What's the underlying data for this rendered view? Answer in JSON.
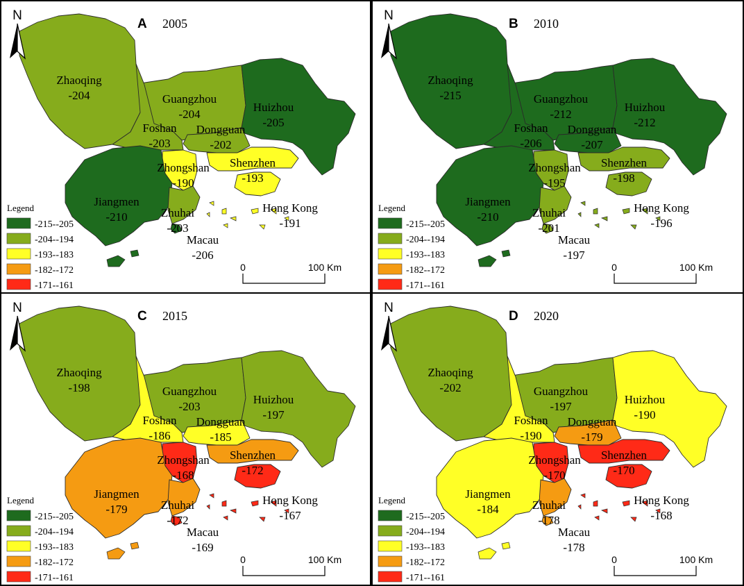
{
  "legend": {
    "title": "Legend",
    "classes": [
      {
        "label": "-215--205",
        "color": "#1e6b1e"
      },
      {
        "label": "-204--194",
        "color": "#86ac1c"
      },
      {
        "label": "-193--183",
        "color": "#ffff26"
      },
      {
        "label": "-182--172",
        "color": "#f59b12"
      },
      {
        "label": "-171--161",
        "color": "#ff2a17"
      }
    ]
  },
  "scale_bar": {
    "zero": "0",
    "end": "100 Km"
  },
  "north_label": "N",
  "panels": [
    {
      "letter": "A",
      "year": "2005",
      "cities": [
        {
          "name": "Zhaoqing",
          "value": "-204",
          "class": 1
        },
        {
          "name": "Guangzhou",
          "value": "-204",
          "class": 1
        },
        {
          "name": "Huizhou",
          "value": "-205",
          "class": 0
        },
        {
          "name": "Foshan",
          "value": "-203",
          "class": 1
        },
        {
          "name": "Dongguan",
          "value": "-202",
          "class": 1
        },
        {
          "name": "Zhongshan",
          "value": "-190",
          "class": 2
        },
        {
          "name": "Shenzhen",
          "value": "-193",
          "class": 2
        },
        {
          "name": "Jiangmen",
          "value": "-210",
          "class": 0
        },
        {
          "name": "Zhuhai",
          "value": "-203",
          "class": 1
        },
        {
          "name": "Hong Kong",
          "value": "-191",
          "class": 2
        },
        {
          "name": "Macau",
          "value": "-206",
          "class": 0
        }
      ]
    },
    {
      "letter": "B",
      "year": "2010",
      "cities": [
        {
          "name": "Zhaoqing",
          "value": "-215",
          "class": 0
        },
        {
          "name": "Guangzhou",
          "value": "-212",
          "class": 0
        },
        {
          "name": "Huizhou",
          "value": "-212",
          "class": 0
        },
        {
          "name": "Foshan",
          "value": "-206",
          "class": 0
        },
        {
          "name": "Dongguan",
          "value": "-207",
          "class": 0
        },
        {
          "name": "Zhongshan",
          "value": "-195",
          "class": 1
        },
        {
          "name": "Shenzhen",
          "value": "-198",
          "class": 1
        },
        {
          "name": "Jiangmen",
          "value": "-210",
          "class": 0
        },
        {
          "name": "Zhuhai",
          "value": "-201",
          "class": 1
        },
        {
          "name": "Hong Kong",
          "value": "-196",
          "class": 1
        },
        {
          "name": "Macau",
          "value": "-197",
          "class": 1
        }
      ]
    },
    {
      "letter": "C",
      "year": "2015",
      "cities": [
        {
          "name": "Zhaoqing",
          "value": "-198",
          "class": 1
        },
        {
          "name": "Guangzhou",
          "value": "-203",
          "class": 1
        },
        {
          "name": "Huizhou",
          "value": "-197",
          "class": 1
        },
        {
          "name": "Foshan",
          "value": "-186",
          "class": 2
        },
        {
          "name": "Dongguan",
          "value": "-185",
          "class": 2
        },
        {
          "name": "Zhongshan",
          "value": "-168",
          "class": 4
        },
        {
          "name": "Shenzhen",
          "value": "-172",
          "class": 3
        },
        {
          "name": "Jiangmen",
          "value": "-179",
          "class": 3
        },
        {
          "name": "Zhuhai",
          "value": "-172",
          "class": 3
        },
        {
          "name": "Hong Kong",
          "value": "-167",
          "class": 4
        },
        {
          "name": "Macau",
          "value": "-169",
          "class": 4
        }
      ]
    },
    {
      "letter": "D",
      "year": "2020",
      "cities": [
        {
          "name": "Zhaoqing",
          "value": "-202",
          "class": 1
        },
        {
          "name": "Guangzhou",
          "value": "-197",
          "class": 1
        },
        {
          "name": "Huizhou",
          "value": "-190",
          "class": 2
        },
        {
          "name": "Foshan",
          "value": "-190",
          "class": 2
        },
        {
          "name": "Dongguan",
          "value": "-179",
          "class": 3
        },
        {
          "name": "Zhongshan",
          "value": "-170",
          "class": 4
        },
        {
          "name": "Shenzhen",
          "value": "-170",
          "class": 4
        },
        {
          "name": "Jiangmen",
          "value": "-184",
          "class": 2
        },
        {
          "name": "Zhuhai",
          "value": "-178",
          "class": 3
        },
        {
          "name": "Hong Kong",
          "value": "-168",
          "class": 4
        },
        {
          "name": "Macau",
          "value": "-178",
          "class": 3
        }
      ]
    }
  ]
}
